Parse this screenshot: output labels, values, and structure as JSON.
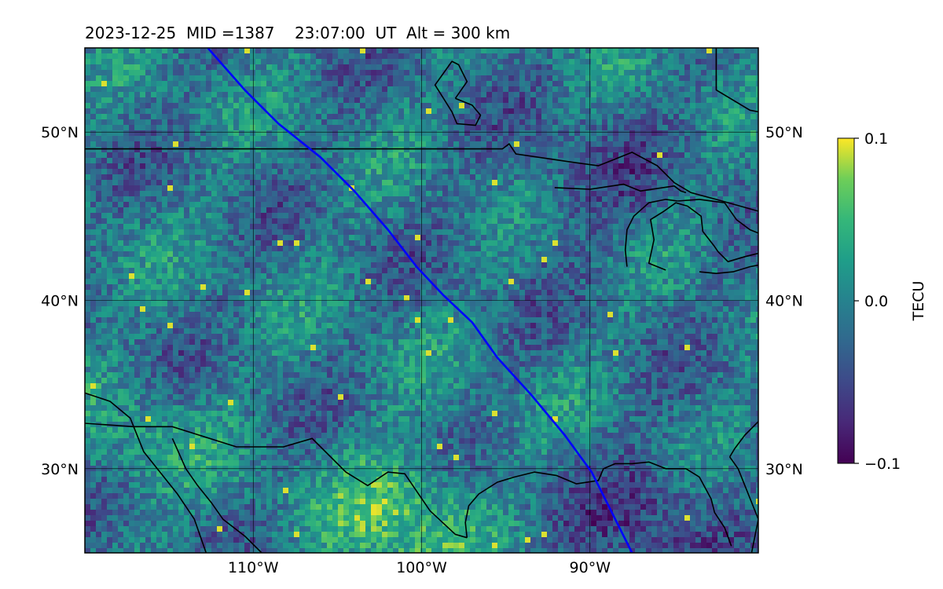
{
  "title": "2023-12-25  MID =1387    23:07:00  UT  Alt = 300 km",
  "map": {
    "lon_range": [
      -120,
      -80
    ],
    "lat_range": [
      25,
      55
    ],
    "grid_lons": [
      -110,
      -100,
      -90
    ],
    "grid_lats": [
      30,
      40,
      50
    ],
    "lon_tick_labels": [
      "110°W",
      "100°W",
      "90°W"
    ],
    "lat_tick_labels": [
      "30°N",
      "40°N",
      "50°N"
    ],
    "grid_on": true,
    "colormap": "viridis",
    "track_color": "#0000ff",
    "coastline_color": "#000000",
    "satellite_track": [
      [
        -112.7,
        55.0
      ],
      [
        -110.5,
        52.5
      ],
      [
        -108.5,
        50.5
      ],
      [
        -106.0,
        48.5
      ],
      [
        -104.0,
        46.5
      ],
      [
        -102.0,
        44.2
      ],
      [
        -100.3,
        42.0
      ],
      [
        -98.7,
        40.3
      ],
      [
        -97.0,
        38.7
      ],
      [
        -95.5,
        36.6
      ],
      [
        -93.5,
        34.4
      ],
      [
        -91.5,
        32.0
      ],
      [
        -89.9,
        29.8
      ],
      [
        -89.0,
        28.0
      ],
      [
        -87.5,
        25.0
      ]
    ],
    "us_canada_border": [
      [
        -120,
        49.0
      ],
      [
        -95.2,
        49.0
      ],
      [
        -94.8,
        49.3
      ],
      [
        -94.4,
        48.7
      ],
      [
        -91.0,
        48.2
      ],
      [
        -89.5,
        48.0
      ],
      [
        -88.5,
        48.4
      ],
      [
        -87.5,
        48.8
      ],
      [
        -86.0,
        48.0
      ],
      [
        -85.0,
        47.0
      ],
      [
        -84.0,
        46.4
      ],
      [
        -82.5,
        46.0
      ],
      [
        -80,
        45.3
      ]
    ],
    "mexico_border": [
      [
        -120,
        32.7
      ],
      [
        -117.1,
        32.5
      ],
      [
        -114.8,
        32.5
      ],
      [
        -111.0,
        31.3
      ],
      [
        -108.2,
        31.3
      ],
      [
        -106.5,
        31.8
      ],
      [
        -104.5,
        29.8
      ],
      [
        -103.2,
        29.0
      ],
      [
        -102.0,
        29.8
      ],
      [
        -101.0,
        29.7
      ],
      [
        -99.5,
        27.5
      ],
      [
        -98.0,
        26.1
      ],
      [
        -97.3,
        25.9
      ]
    ],
    "coastlines": [
      [
        [
          -120,
          34.5
        ],
        [
          -118.5,
          34.0
        ],
        [
          -117.3,
          33.0
        ],
        [
          -117.1,
          32.5
        ],
        [
          -116.5,
          31.0
        ],
        [
          -115.7,
          30.0
        ],
        [
          -114.5,
          28.5
        ],
        [
          -113.5,
          27.0
        ],
        [
          -112.8,
          25.0
        ]
      ],
      [
        [
          -114.8,
          31.8
        ],
        [
          -114.0,
          30.0
        ],
        [
          -113.3,
          29.0
        ],
        [
          -112.5,
          28.0
        ],
        [
          -111.8,
          27.0
        ],
        [
          -110.5,
          26.0
        ],
        [
          -109.5,
          25.0
        ]
      ],
      [
        [
          -97.3,
          25.9
        ],
        [
          -97.4,
          26.8
        ],
        [
          -97.2,
          27.8
        ],
        [
          -96.6,
          28.5
        ],
        [
          -95.5,
          29.2
        ],
        [
          -94.5,
          29.5
        ],
        [
          -93.3,
          29.8
        ],
        [
          -92.0,
          29.6
        ],
        [
          -90.8,
          29.1
        ],
        [
          -89.5,
          29.3
        ],
        [
          -89.2,
          30.0
        ],
        [
          -88.5,
          30.3
        ],
        [
          -87.5,
          30.3
        ],
        [
          -86.5,
          30.4
        ],
        [
          -85.5,
          30.0
        ],
        [
          -84.3,
          30.0
        ],
        [
          -83.5,
          29.5
        ],
        [
          -82.8,
          28.2
        ],
        [
          -82.6,
          27.4
        ],
        [
          -82.0,
          26.5
        ],
        [
          -81.6,
          25.4
        ]
      ],
      [
        [
          -80.0,
          27.0
        ],
        [
          -80.2,
          26.0
        ],
        [
          -80.4,
          25.0
        ]
      ],
      [
        [
          -81.7,
          30.7
        ],
        [
          -81.2,
          30.0
        ],
        [
          -80.8,
          29.0
        ],
        [
          -80.0,
          27.0
        ]
      ],
      [
        [
          -80.0,
          32.8
        ],
        [
          -80.8,
          32.0
        ],
        [
          -81.4,
          31.2
        ],
        [
          -81.7,
          30.7
        ]
      ],
      [
        [
          -98.0,
          52.0
        ],
        [
          -97.3,
          53.0
        ],
        [
          -97.8,
          54.0
        ],
        [
          -98.2,
          54.2
        ],
        [
          -98.7,
          53.5
        ],
        [
          -99.2,
          52.8
        ],
        [
          -98.7,
          52.0
        ],
        [
          -98.2,
          51.2
        ],
        [
          -97.9,
          50.5
        ],
        [
          -96.8,
          50.4
        ],
        [
          -96.5,
          51.0
        ],
        [
          -97.0,
          51.6
        ],
        [
          -98.0,
          52.0
        ]
      ],
      [
        [
          -82.5,
          55.0
        ],
        [
          -82.5,
          52.5
        ],
        [
          -80.5,
          51.3
        ],
        [
          -80,
          51.2
        ]
      ],
      [
        [
          -92.1,
          46.7
        ],
        [
          -90.0,
          46.6
        ],
        [
          -88.0,
          46.9
        ],
        [
          -87.0,
          46.5
        ],
        [
          -85.0,
          46.8
        ],
        [
          -84.6,
          46.5
        ],
        [
          -84.3,
          46.4
        ]
      ],
      [
        [
          -87.8,
          42.0
        ],
        [
          -87.9,
          43.0
        ],
        [
          -87.8,
          44.2
        ],
        [
          -87.4,
          45.0
        ],
        [
          -86.5,
          45.8
        ],
        [
          -85.5,
          46.0
        ],
        [
          -84.8,
          45.9
        ]
      ],
      [
        [
          -85.5,
          41.8
        ],
        [
          -86.5,
          42.2
        ],
        [
          -86.2,
          43.6
        ],
        [
          -86.4,
          44.8
        ],
        [
          -85.6,
          45.3
        ],
        [
          -84.9,
          45.8
        ],
        [
          -84.2,
          45.6
        ],
        [
          -83.4,
          45.0
        ],
        [
          -83.3,
          44.1
        ],
        [
          -82.6,
          43.2
        ],
        [
          -82.4,
          42.9
        ]
      ],
      [
        [
          -84.8,
          45.9
        ],
        [
          -83.5,
          46.0
        ],
        [
          -82.0,
          45.8
        ],
        [
          -81.3,
          44.8
        ],
        [
          -80.5,
          44.2
        ],
        [
          -80,
          44.0
        ]
      ],
      [
        [
          -83.5,
          41.7
        ],
        [
          -82.5,
          41.6
        ],
        [
          -81.5,
          41.7
        ],
        [
          -80.5,
          42.0
        ],
        [
          -80,
          42.1
        ]
      ],
      [
        [
          -82.4,
          42.9
        ],
        [
          -81.8,
          42.3
        ],
        [
          -80.8,
          42.6
        ],
        [
          -80,
          42.8
        ]
      ]
    ]
  },
  "colorbar": {
    "label": "TECU",
    "min": -0.1,
    "max": 0.1,
    "ticks": [
      0.1,
      0.0,
      -0.1
    ],
    "tick_labels": [
      "0.1",
      "0.0",
      "−0.1"
    ]
  }
}
